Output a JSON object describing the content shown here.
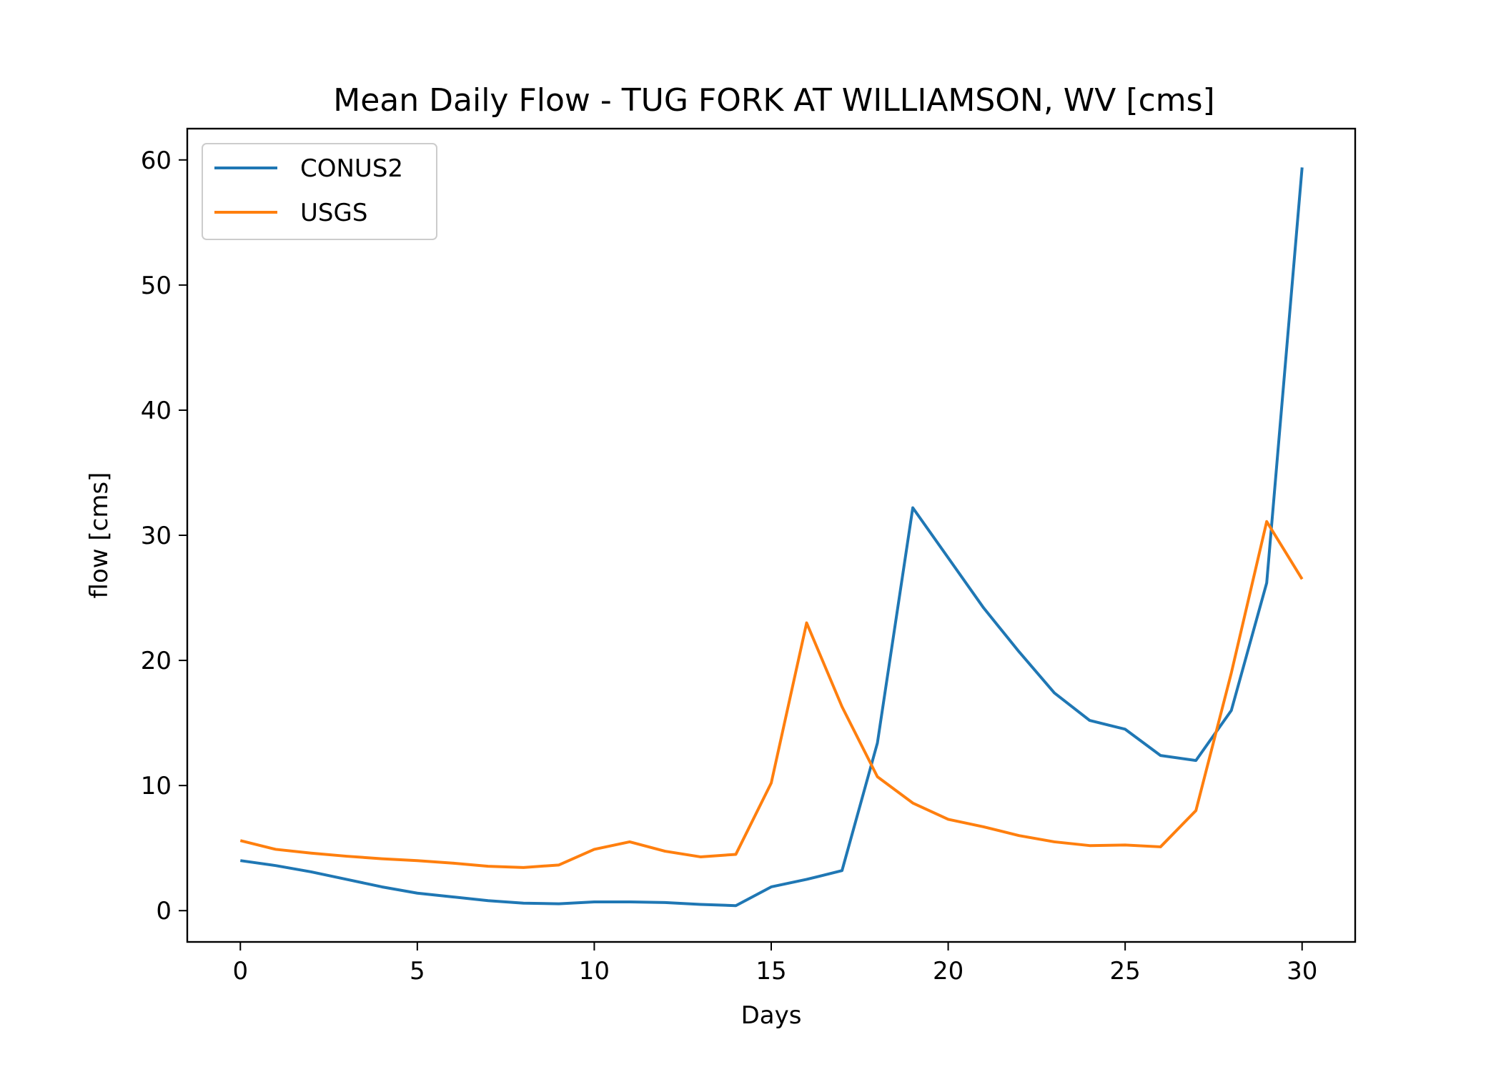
{
  "chart_data": {
    "type": "line",
    "title": "Mean Daily Flow - TUG FORK AT WILLIAMSON, WV [cms]",
    "xlabel": "Days",
    "ylabel": "flow [cms]",
    "xlim": [
      -1.5,
      31.5
    ],
    "ylim": [
      -2.5,
      62.5
    ],
    "xticks": [
      0,
      5,
      10,
      15,
      20,
      25,
      30
    ],
    "yticks": [
      0,
      10,
      20,
      30,
      40,
      50,
      60
    ],
    "grid": false,
    "legend_position": "upper left",
    "x": [
      0,
      1,
      2,
      3,
      4,
      5,
      6,
      7,
      8,
      9,
      10,
      11,
      12,
      13,
      14,
      15,
      16,
      17,
      18,
      19,
      20,
      21,
      22,
      23,
      24,
      25,
      26,
      27,
      28,
      29,
      30
    ],
    "series": [
      {
        "name": "CONUS2",
        "color": "#1f77b4",
        "values": [
          4.0,
          3.6,
          3.1,
          2.5,
          1.9,
          1.4,
          1.1,
          0.8,
          0.6,
          0.55,
          0.7,
          0.7,
          0.65,
          0.5,
          0.4,
          1.9,
          2.5,
          3.2,
          13.4,
          32.2,
          28.2,
          24.2,
          20.7,
          17.4,
          15.2,
          14.5,
          12.4,
          12.0,
          16.0,
          26.2,
          59.4
        ]
      },
      {
        "name": "USGS",
        "color": "#ff7f0e",
        "values": [
          5.6,
          4.9,
          4.6,
          4.35,
          4.15,
          4.0,
          3.8,
          3.55,
          3.45,
          3.65,
          4.9,
          5.5,
          4.75,
          4.3,
          4.5,
          10.2,
          23.0,
          16.3,
          10.7,
          8.6,
          7.3,
          6.7,
          6.0,
          5.5,
          5.2,
          5.25,
          5.1,
          8.0,
          19.0,
          31.1,
          26.5
        ]
      }
    ]
  }
}
